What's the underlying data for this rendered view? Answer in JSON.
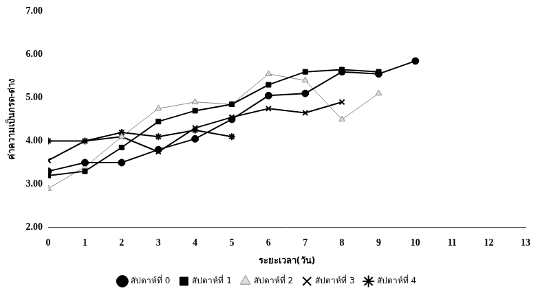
{
  "chart_data": {
    "type": "line",
    "x_label": "ระยะเวลา(วัน)",
    "y_label": "ค่าความเป็นกรด-ด่าง",
    "x": [
      0,
      1,
      2,
      3,
      4,
      5,
      6,
      7,
      8,
      9,
      10
    ],
    "series": [
      {
        "name": "สัปดาห์ที่ 0",
        "color": "#000000",
        "marker": "circle",
        "line_style": "solid",
        "values": [
          3.3,
          3.5,
          3.5,
          3.8,
          4.05,
          4.5,
          5.05,
          5.1,
          5.6,
          5.55,
          5.85
        ]
      },
      {
        "name": "สัปดาห์ที่ 1",
        "color": "#000000",
        "marker": "square",
        "line_style": "solid",
        "values": [
          3.2,
          3.3,
          3.85,
          4.45,
          4.7,
          4.85,
          5.3,
          5.6,
          5.65,
          5.6,
          null
        ]
      },
      {
        "name": "สัปดาห์ที่ 2",
        "color": "#888888",
        "marker": "triangle",
        "line_style": "solid",
        "values": [
          2.9,
          3.4,
          4.1,
          4.75,
          4.9,
          4.85,
          5.55,
          5.4,
          4.5,
          5.1,
          null
        ]
      },
      {
        "name": "สัปดาห์ที่ 3",
        "color": "#000000",
        "marker": "x",
        "line_style": "solid",
        "values": [
          3.55,
          4.0,
          4.1,
          3.75,
          4.3,
          4.55,
          4.75,
          4.65,
          4.9,
          null,
          null
        ]
      },
      {
        "name": "สัปดาห์ที่ 4",
        "color": "#000000",
        "marker": "star",
        "line_style": "solid",
        "values": [
          4.0,
          4.0,
          4.2,
          4.1,
          4.25,
          4.1,
          null,
          null,
          null,
          null,
          null
        ]
      }
    ],
    "xlim": [
      0,
      13
    ],
    "xticks": [
      0,
      1,
      2,
      3,
      4,
      5,
      6,
      7,
      8,
      9,
      10,
      11,
      12,
      13
    ],
    "ylim": [
      2,
      7
    ],
    "yticks": [
      {
        "value": 2,
        "label": "2.00"
      },
      {
        "value": 3,
        "label": "3.00"
      },
      {
        "value": 4,
        "label": "4.00"
      },
      {
        "value": 5,
        "label": "5.00"
      },
      {
        "value": 6,
        "label": "6.00"
      },
      {
        "value": 7,
        "label": "7.00"
      }
    ],
    "grid": false,
    "legend": "bottom"
  }
}
